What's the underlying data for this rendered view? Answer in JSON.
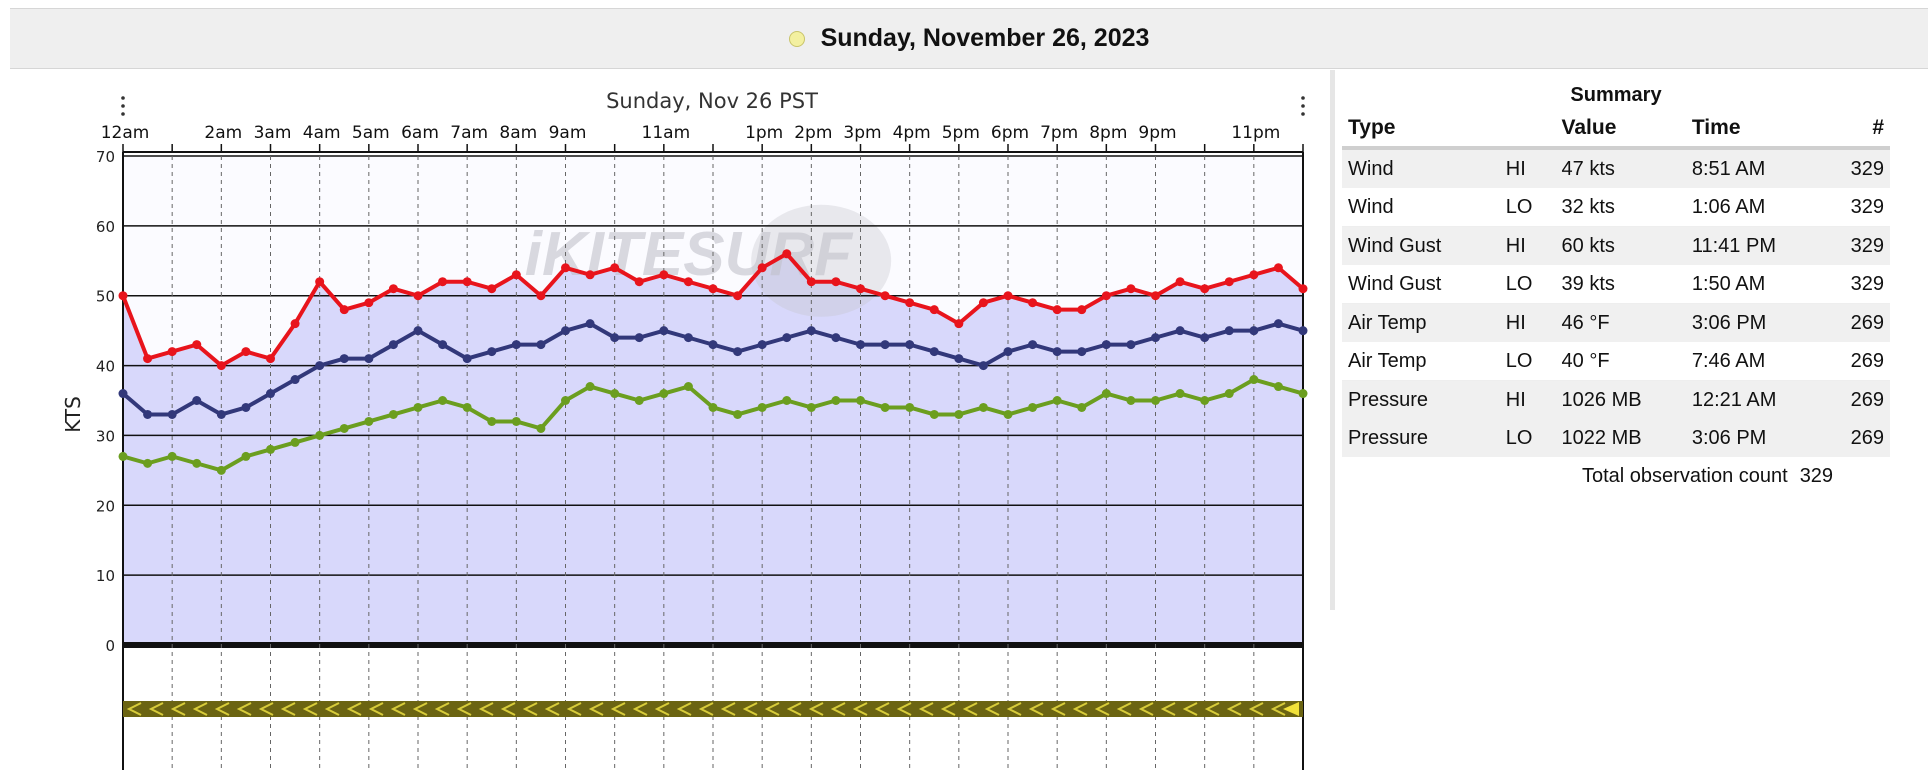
{
  "header": {
    "date_title": "Sunday, November 26, 2023"
  },
  "chart_data": {
    "type": "line",
    "title": "Sunday, Nov 26 PST",
    "xlabel": "",
    "ylabel": "KTS",
    "xlim": [
      0,
      24
    ],
    "ylim": [
      0,
      70
    ],
    "yticks": [
      0,
      10,
      20,
      30,
      40,
      50,
      60,
      70
    ],
    "x_tick_labels": [
      {
        "hour": 0,
        "label": "12am"
      },
      {
        "hour": 2,
        "label": "2am"
      },
      {
        "hour": 3,
        "label": "3am"
      },
      {
        "hour": 4,
        "label": "4am"
      },
      {
        "hour": 5,
        "label": "5am"
      },
      {
        "hour": 6,
        "label": "6am"
      },
      {
        "hour": 7,
        "label": "7am"
      },
      {
        "hour": 8,
        "label": "8am"
      },
      {
        "hour": 9,
        "label": "9am"
      },
      {
        "hour": 11,
        "label": "11am"
      },
      {
        "hour": 13,
        "label": "1pm"
      },
      {
        "hour": 14,
        "label": "2pm"
      },
      {
        "hour": 15,
        "label": "3pm"
      },
      {
        "hour": 16,
        "label": "4pm"
      },
      {
        "hour": 17,
        "label": "5pm"
      },
      {
        "hour": 18,
        "label": "6pm"
      },
      {
        "hour": 19,
        "label": "7pm"
      },
      {
        "hour": 20,
        "label": "8pm"
      },
      {
        "hour": 21,
        "label": "9pm"
      },
      {
        "hour": 23,
        "label": "11pm"
      }
    ],
    "watermark": "iKITESURF",
    "grid": true,
    "legend": "none",
    "area_fill_color": "#d8d8fb",
    "series": [
      {
        "color": "#e8141c",
        "x": [
          0,
          0.5,
          1,
          1.5,
          2,
          2.5,
          3,
          3.5,
          4,
          4.5,
          5,
          5.5,
          6,
          6.5,
          7,
          7.5,
          8,
          8.5,
          9,
          9.5,
          10,
          10.5,
          11,
          11.5,
          12,
          12.5,
          13,
          13.5,
          14,
          14.5,
          15,
          15.5,
          16,
          16.5,
          17,
          17.5,
          18,
          18.5,
          19,
          19.5,
          20,
          20.5,
          21,
          21.5,
          22,
          22.5,
          23,
          23.5,
          24
        ],
        "y": [
          50,
          41,
          42,
          43,
          40,
          42,
          41,
          46,
          52,
          48,
          49,
          51,
          50,
          52,
          52,
          51,
          53,
          50,
          54,
          53,
          54,
          52,
          53,
          52,
          51,
          50,
          54,
          56,
          52,
          52,
          51,
          50,
          49,
          48,
          46,
          49,
          50,
          49,
          48,
          48,
          50,
          51,
          50,
          52,
          51,
          52,
          53,
          54,
          51
        ]
      },
      {
        "color": "#32387a",
        "x": [
          0,
          0.5,
          1,
          1.5,
          2,
          2.5,
          3,
          3.5,
          4,
          4.5,
          5,
          5.5,
          6,
          6.5,
          7,
          7.5,
          8,
          8.5,
          9,
          9.5,
          10,
          10.5,
          11,
          11.5,
          12,
          12.5,
          13,
          13.5,
          14,
          14.5,
          15,
          15.5,
          16,
          16.5,
          17,
          17.5,
          18,
          18.5,
          19,
          19.5,
          20,
          20.5,
          21,
          21.5,
          22,
          22.5,
          23,
          23.5,
          24
        ],
        "y": [
          36,
          33,
          33,
          35,
          33,
          34,
          36,
          38,
          40,
          41,
          41,
          43,
          45,
          43,
          41,
          42,
          43,
          43,
          45,
          46,
          44,
          44,
          45,
          44,
          43,
          42,
          43,
          44,
          45,
          44,
          43,
          43,
          43,
          42,
          41,
          40,
          42,
          43,
          42,
          42,
          43,
          43,
          44,
          45,
          44,
          45,
          45,
          46,
          45
        ]
      },
      {
        "color": "#6b9e1f",
        "x": [
          0,
          0.5,
          1,
          1.5,
          2,
          2.5,
          3,
          3.5,
          4,
          4.5,
          5,
          5.5,
          6,
          6.5,
          7,
          7.5,
          8,
          8.5,
          9,
          9.5,
          10,
          10.5,
          11,
          11.5,
          12,
          12.5,
          13,
          13.5,
          14,
          14.5,
          15,
          15.5,
          16,
          16.5,
          17,
          17.5,
          18,
          18.5,
          19,
          19.5,
          20,
          20.5,
          21,
          21.5,
          22,
          22.5,
          23,
          23.5,
          24
        ],
        "y": [
          27,
          26,
          27,
          26,
          25,
          27,
          28,
          29,
          30,
          31,
          32,
          33,
          34,
          35,
          34,
          32,
          32,
          31,
          35,
          37,
          36,
          35,
          36,
          37,
          34,
          33,
          34,
          35,
          34,
          35,
          35,
          34,
          34,
          33,
          33,
          34,
          33,
          34,
          35,
          34,
          36,
          35,
          35,
          36,
          35,
          36,
          38,
          37,
          36
        ]
      }
    ],
    "direction_strip": true
  },
  "summary": {
    "title": "Summary",
    "headers": {
      "type": "Type",
      "value": "Value",
      "time": "Time",
      "count": "#"
    },
    "rows": [
      {
        "type": "Wind",
        "hilo": "HI",
        "value": "47 kts",
        "time": "8:51 AM",
        "count": "329"
      },
      {
        "type": "Wind",
        "hilo": "LO",
        "value": "32 kts",
        "time": "1:06 AM",
        "count": "329"
      },
      {
        "type": "Wind Gust",
        "hilo": "HI",
        "value": "60 kts",
        "time": "11:41 PM",
        "count": "329"
      },
      {
        "type": "Wind Gust",
        "hilo": "LO",
        "value": "39 kts",
        "time": "1:50 AM",
        "count": "329"
      },
      {
        "type": "Air Temp",
        "hilo": "HI",
        "value": "46 °F",
        "time": "3:06 PM",
        "count": "269"
      },
      {
        "type": "Air Temp",
        "hilo": "LO",
        "value": "40 °F",
        "time": "7:46 AM",
        "count": "269"
      },
      {
        "type": "Pressure",
        "hilo": "HI",
        "value": "1026 MB",
        "time": "12:21 AM",
        "count": "269"
      },
      {
        "type": "Pressure",
        "hilo": "LO",
        "value": "1022 MB",
        "time": "3:06 PM",
        "count": "269"
      }
    ],
    "total_label": "Total observation count",
    "total_value": "329"
  }
}
